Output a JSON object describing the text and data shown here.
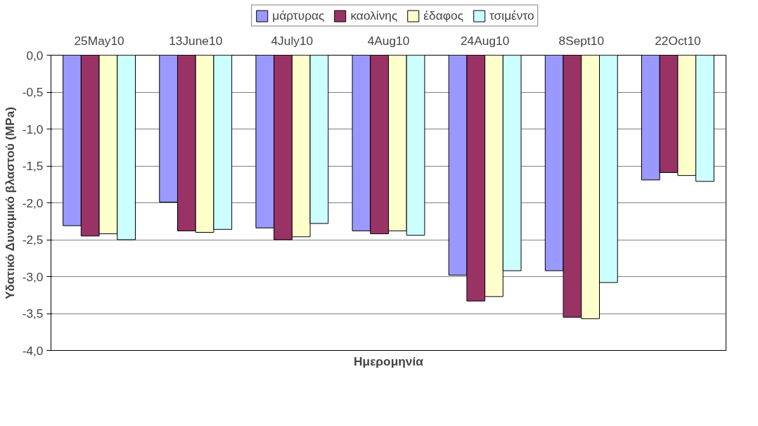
{
  "chart_data": {
    "type": "bar",
    "xlabel": "Ημερομηνία",
    "ylabel": "Υδατικό Δυναμικό βλαστού (MPa)",
    "categories": [
      "25May10",
      "13June10",
      "4July10",
      "4Aug10",
      "24Aug10",
      "8Sept10",
      "22Oct10"
    ],
    "series": [
      {
        "name": "μάρτυρας",
        "color": "#9999ff",
        "values": [
          -2.31,
          -1.99,
          -2.34,
          -2.38,
          -2.98,
          -2.92,
          -1.69
        ]
      },
      {
        "name": "καολίνης",
        "color": "#993366",
        "values": [
          -2.45,
          -2.38,
          -2.5,
          -2.42,
          -3.33,
          -3.55,
          -1.59
        ]
      },
      {
        "name": "έδαφος",
        "color": "#ffffcc",
        "values": [
          -2.42,
          -2.4,
          -2.46,
          -2.38,
          -3.27,
          -3.57,
          -1.63
        ]
      },
      {
        "name": "τσιμέντο",
        "color": "#ccffff",
        "values": [
          -2.5,
          -2.36,
          -2.28,
          -2.44,
          -2.92,
          -3.08,
          -1.71
        ]
      }
    ],
    "ylim": [
      -4,
      0
    ],
    "yticks": [
      {
        "value": 0,
        "label": "0,0"
      },
      {
        "value": -0.5,
        "label": "-0,5"
      },
      {
        "value": -1,
        "label": "-1,0"
      },
      {
        "value": -1.5,
        "label": "-1,5"
      },
      {
        "value": -2,
        "label": "-2,0"
      },
      {
        "value": -2.5,
        "label": "-2,5"
      },
      {
        "value": -3,
        "label": "-3,0"
      },
      {
        "value": -3.5,
        "label": "-3,5"
      },
      {
        "value": -4,
        "label": "-4,0"
      }
    ],
    "grid": "y",
    "legend": "top"
  }
}
